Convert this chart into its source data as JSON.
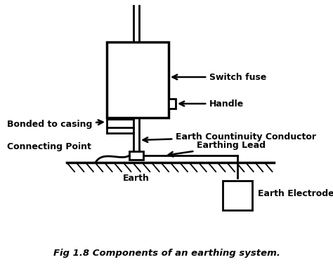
{
  "title": "Fig 1.8 Components of an earthing system.",
  "background_color": "#ffffff",
  "line_color": "#000000",
  "labels": {
    "switch_fuse": "Switch fuse",
    "handle": "Handle",
    "bonded": "Bonded to casing",
    "earth_continuity": "Earth Countinuity Conductor",
    "connecting_point": "Connecting Point",
    "earthing_lead": "Earthing Lead",
    "earth": "Earth",
    "earth_electrode": "Earth Electrode"
  },
  "figsize": [
    4.74,
    3.84
  ],
  "dpi": 100
}
